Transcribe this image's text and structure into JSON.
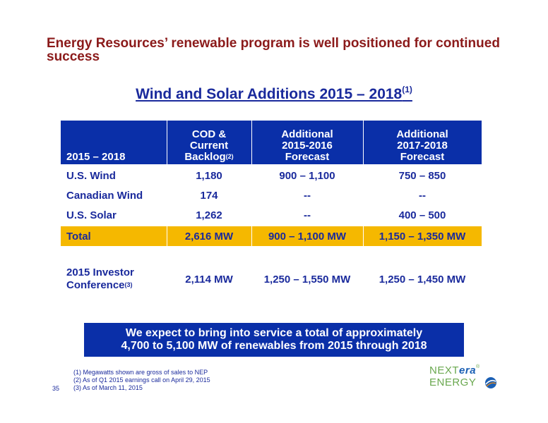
{
  "title": "Energy Resources’ renewable program is well positioned for continued success",
  "subtitle": {
    "text": "Wind and Solar Additions 2015 – 2018",
    "sup": "(1)"
  },
  "table": {
    "headers": [
      {
        "line1": "",
        "line2": "",
        "line3": "2015 – 2018"
      },
      {
        "line1": "COD &",
        "line2": "Current",
        "line3": "Backlog",
        "sup": "(2)"
      },
      {
        "line1": "Additional",
        "line2": "2015-2016",
        "line3": "Forecast"
      },
      {
        "line1": "Additional",
        "line2": "2017-2018",
        "line3": "Forecast"
      }
    ],
    "rows": [
      [
        "U.S. Wind",
        "1,180",
        "900 – 1,100",
        "750 – 850"
      ],
      [
        "Canadian Wind",
        "174",
        "--",
        "--"
      ],
      [
        "U.S. Solar",
        "1,262",
        "--",
        "400 – 500"
      ]
    ],
    "total": [
      "Total",
      "2,616 MW",
      "900 – 1,100 MW",
      "1,150 – 1,350 MW"
    ],
    "investor": {
      "label_line1": "2015 Investor",
      "label_line2": "Conference",
      "sup": "(3)",
      "values": [
        "2,114 MW",
        "1,250 – 1,550 MW",
        "1,250 – 1,450 MW"
      ]
    }
  },
  "banner": {
    "line1": "We expect to bring into service a total of approximately",
    "line2": "4,700 to 5,100 MW of renewables from 2015 through 2018"
  },
  "footnotes": [
    "(1)  Megawatts shown are gross of sales to NEP",
    "(2)  As of Q1 2015 earnings call on April 29, 2015",
    "(3)  As of March 11, 2015"
  ],
  "page_number": "35",
  "logo": {
    "line1_a": "NEXT",
    "line1_b": "era",
    "line2": "ENERGY",
    "mark": "®",
    "colors": {
      "green": "#6aa84f",
      "blue": "#1a5fb4",
      "orange": "#e8891a"
    }
  }
}
